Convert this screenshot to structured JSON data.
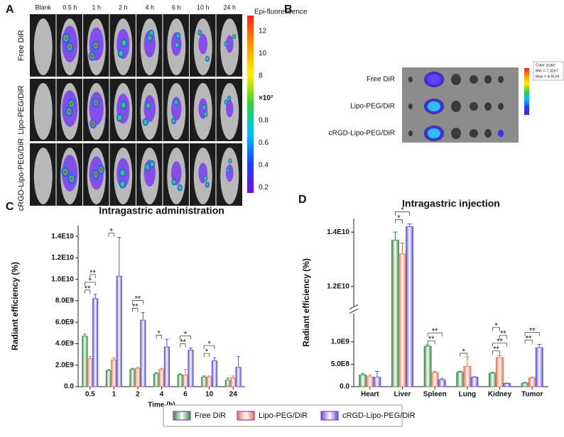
{
  "images": [
    {
      "panel": "A",
      "columns": [
        "Blank",
        "0.5 h",
        "1 h",
        "2 h",
        "4 h",
        "6 h",
        "10 h",
        "24 h"
      ],
      "rows": [
        {
          "label": "Free DiR",
          "color": "#2ca02c"
        },
        {
          "label": "Lipo-PEG/DiR",
          "color": "#e02020"
        },
        {
          "label": "cRGD-Lipo-PEG/DiR",
          "color": "#1f8fd0"
        }
      ],
      "colorbar": {
        "title": "Epi-fluorescence",
        "ticks_upper": [
          12,
          10,
          8
        ],
        "unit": "×10²",
        "ticks_lower": [
          0.8,
          0.6,
          0.4,
          0.2
        ]
      }
    },
    {
      "panel": "B",
      "rows": [
        {
          "label": "Free DiR",
          "color": "#2ca02c"
        },
        {
          "label": "Lipo-PEG/DiR",
          "color": "#e02020"
        },
        {
          "label": "cRGD-Lipo-PEG/DiR",
          "color": "#1f8fd0"
        }
      ],
      "colorbar": {
        "title": "Color scale",
        "min": "Min = 7.32e7",
        "max": "Max = 4.91e9"
      }
    }
  ],
  "chart_data": [
    {
      "panel": "C",
      "type": "bar",
      "title": "Intragastric administration",
      "x_label": "Time (h)",
      "y_label": "Radiant efficiency (%)",
      "categories": [
        "0.5",
        "1",
        "2",
        "4",
        "6",
        "10",
        "24"
      ],
      "series": [
        {
          "name": "Free DiR",
          "color": "#2e8b3e",
          "values": [
            4700000000.0,
            1500000000.0,
            1600000000.0,
            1200000000.0,
            1100000000.0,
            900000000.0,
            600000000.0
          ],
          "errors": [
            200000000.0,
            100000000.0,
            100000000.0,
            100000000.0,
            100000000.0,
            100000000.0,
            200000000.0
          ]
        },
        {
          "name": "Lipo-PEG/DiR",
          "color": "#f07050",
          "values": [
            2600000000.0,
            2500000000.0,
            1700000000.0,
            1600000000.0,
            1100000000.0,
            900000000.0,
            800000000.0
          ],
          "errors": [
            200000000.0,
            200000000.0,
            100000000.0,
            100000000.0,
            500000000.0,
            100000000.0,
            200000000.0
          ]
        },
        {
          "name": "cRGD-Lipo-PEG/DiR",
          "color": "#5a4fe0",
          "values": [
            8200000000.0,
            10300000000.0,
            6200000000.0,
            3700000000.0,
            3400000000.0,
            2400000000.0,
            1800000000.0
          ],
          "errors": [
            400000000.0,
            3600000000.0,
            700000000.0,
            700000000.0,
            200000000.0,
            300000000.0,
            1000000000.0
          ]
        }
      ],
      "significance": [
        [
          "**",
          "*",
          "**"
        ],
        [
          "*"
        ],
        [
          "**",
          "**"
        ],
        [
          "*"
        ],
        [
          "**",
          "*"
        ],
        [
          "*",
          "*"
        ],
        []
      ],
      "ylim": [
        0,
        15000000000.0
      ],
      "yticks": [
        {
          "value": 0,
          "label": "0.0"
        },
        {
          "value": 2000000000.0,
          "label": "2.0E9"
        },
        {
          "value": 4000000000.0,
          "label": "4.0E9"
        },
        {
          "value": 6000000000.0,
          "label": "6.0E9"
        },
        {
          "value": 8000000000.0,
          "label": "8.0E9"
        },
        {
          "value": 10000000000.0,
          "label": "1.0E10"
        },
        {
          "value": 12000000000.0,
          "label": "1.2E10"
        },
        {
          "value": 14000000000.0,
          "label": "1.4E10"
        }
      ]
    },
    {
      "panel": "D",
      "type": "bar",
      "title": "Intragastric injection",
      "y_label": "Radiant efficiency (%)",
      "categories": [
        "Heart",
        "Liver",
        "Spleen",
        "Lung",
        "Kidney",
        "Tumor"
      ],
      "series": [
        {
          "color": "#2e8b3e",
          "values": [
            260000000.0,
            13700000000.0,
            900000000.0,
            320000000.0,
            300000000.0,
            80000000.0
          ],
          "errors": [
            30000000.0,
            300000000.0,
            30000000.0,
            20000000.0,
            20000000.0,
            10000000.0
          ]
        },
        {
          "color": "#f07050",
          "values": [
            220000000.0,
            13200000000.0,
            310000000.0,
            450000000.0,
            650000000.0,
            190000000.0
          ],
          "errors": [
            40000000.0,
            400000000.0,
            30000000.0,
            200000000.0,
            50000000.0,
            20000000.0
          ]
        },
        {
          "color": "#5a4fe0",
          "values": [
            210000000.0,
            14200000000.0,
            150000000.0,
            210000000.0,
            70000000.0,
            870000000.0
          ],
          "errors": [
            130000000.0,
            100000000.0,
            30000000.0,
            10000000.0,
            10000000.0,
            70000000.0
          ]
        }
      ],
      "significance": [
        [],
        [
          "*",
          "*"
        ],
        [
          "**",
          "**"
        ],
        [
          "*"
        ],
        [
          "**",
          "**",
          "**",
          "*"
        ],
        [
          "**",
          "**"
        ]
      ],
      "ylim": [
        0,
        14500000000.0
      ],
      "ybreak": [
        1500000000.0,
        11500000000.0
      ],
      "yticks": [
        {
          "value": 0,
          "label": "0.0"
        },
        {
          "value": 500000000.0,
          "label": "5.0E8"
        },
        {
          "value": 1000000000.0,
          "label": "1.0E9"
        },
        {
          "value": 12000000000.0,
          "label": "1.2E10"
        },
        {
          "value": 14000000000.0,
          "label": "1.4E10"
        }
      ]
    }
  ]
}
